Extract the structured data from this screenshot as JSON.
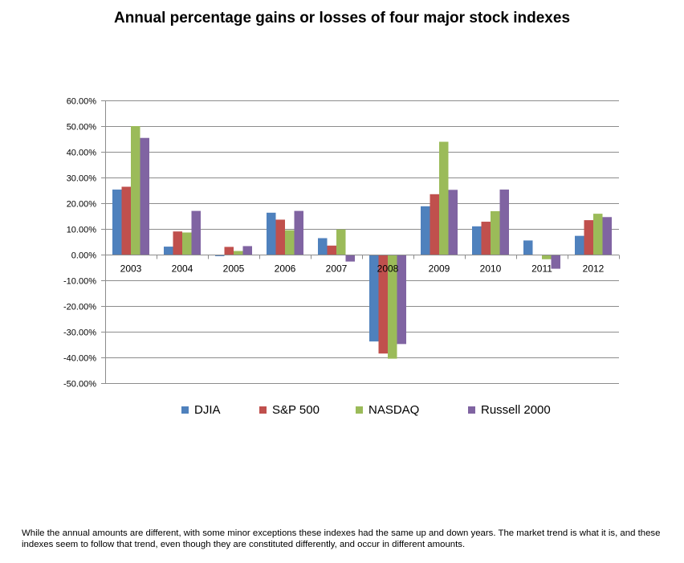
{
  "page": {
    "title": "Annual percentage gains or losses of four major stock indexes",
    "caption": "While the annual amounts are different, with some minor exceptions these indexes had the same up and down years.  The market trend is what it is, and these indexes seem to follow that trend, even though they are constituted differently, and occur in different amounts."
  },
  "chart_data": {
    "type": "bar",
    "title": "Annual percentage gains or losses of four major stock indexes",
    "xlabel": "",
    "ylabel": "",
    "categories": [
      "2003",
      "2004",
      "2005",
      "2006",
      "2007",
      "2008",
      "2009",
      "2010",
      "2011",
      "2012"
    ],
    "ylim": [
      -50,
      60
    ],
    "ytick_labels": [
      "60.00%",
      "50.00%",
      "40.00%",
      "30.00%",
      "20.00%",
      "10.00%",
      "0.00%",
      "-10.00%",
      "-20.00%",
      "-30.00%",
      "-40.00%",
      "-50.00%"
    ],
    "grid": "horizontal",
    "legend": "bottom",
    "series": [
      {
        "name": "DJIA",
        "color": "#4f81bd",
        "values": [
          25.3,
          3.1,
          -0.6,
          16.3,
          6.4,
          -33.8,
          18.8,
          11.0,
          5.5,
          7.3
        ]
      },
      {
        "name": "S&P 500",
        "color": "#c0504d",
        "values": [
          26.4,
          9.0,
          3.0,
          13.6,
          3.5,
          -38.5,
          23.5,
          12.8,
          0.0,
          13.4
        ]
      },
      {
        "name": "NASDAQ",
        "color": "#9bbb59",
        "values": [
          50.0,
          8.6,
          1.4,
          9.5,
          9.8,
          -40.5,
          43.9,
          16.9,
          -1.8,
          15.9
        ]
      },
      {
        "name": "Russell 2000",
        "color": "#8064a2",
        "values": [
          45.4,
          17.0,
          3.3,
          17.0,
          -2.7,
          -34.8,
          25.2,
          25.3,
          -5.5,
          14.6
        ]
      }
    ]
  }
}
